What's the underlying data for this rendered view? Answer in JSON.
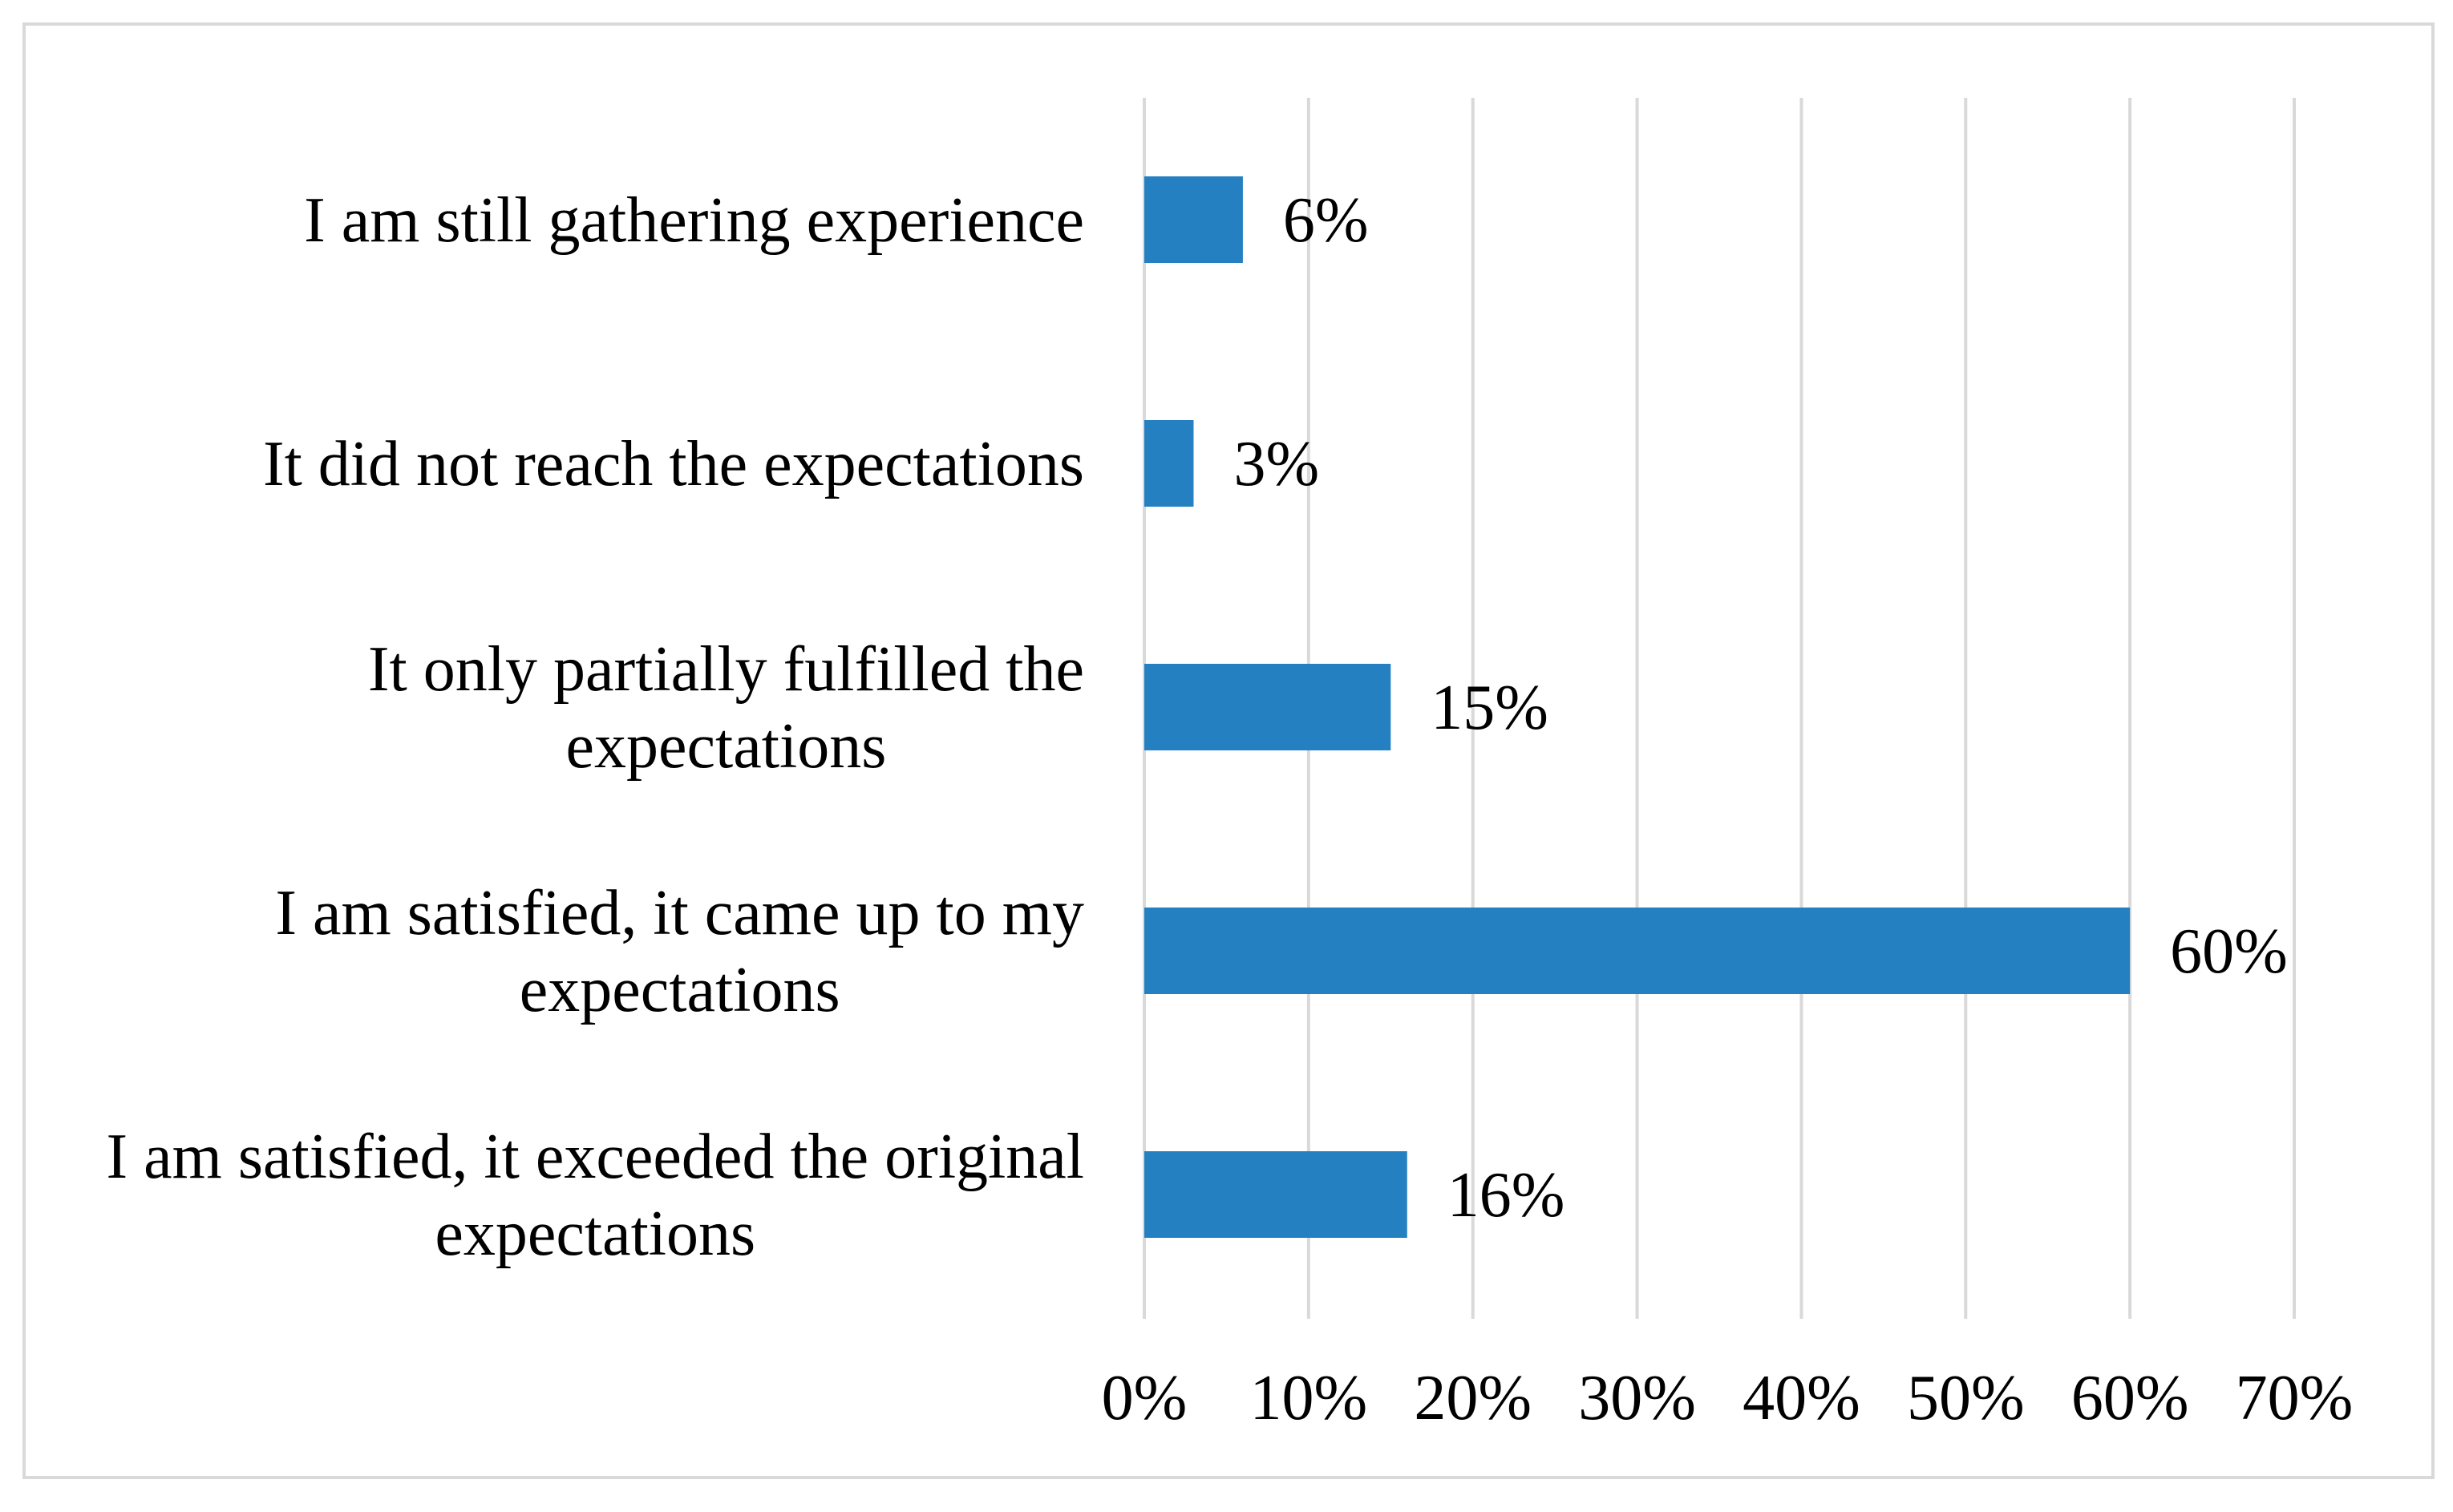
{
  "chart_data": {
    "type": "bar",
    "orientation": "horizontal",
    "categories": [
      [
        "I am still gathering experience"
      ],
      [
        "It did not reach the expectations"
      ],
      [
        "It only partially fulfilled the",
        "expectations"
      ],
      [
        "I am satisfied, it came up to my",
        "expectations"
      ],
      [
        "I am satisfied, it exceeded the original",
        "expectations"
      ]
    ],
    "values": [
      6,
      3,
      15,
      60,
      16
    ],
    "data_labels": [
      "6%",
      "3%",
      "15%",
      "60%",
      "16%"
    ],
    "xlim": [
      0,
      70
    ],
    "x_ticks": [
      0,
      10,
      20,
      30,
      40,
      50,
      60,
      70
    ],
    "x_tick_labels": [
      "0%",
      "10%",
      "20%",
      "30%",
      "40%",
      "50%",
      "60%",
      "70%"
    ],
    "title": "",
    "xlabel": "",
    "ylabel": "",
    "grid": "vertical",
    "legend": "none",
    "colors": {
      "bar": "#2580C2",
      "grid": "#D9D9D9",
      "border": "#D9D9D9",
      "text": "#000000"
    }
  }
}
